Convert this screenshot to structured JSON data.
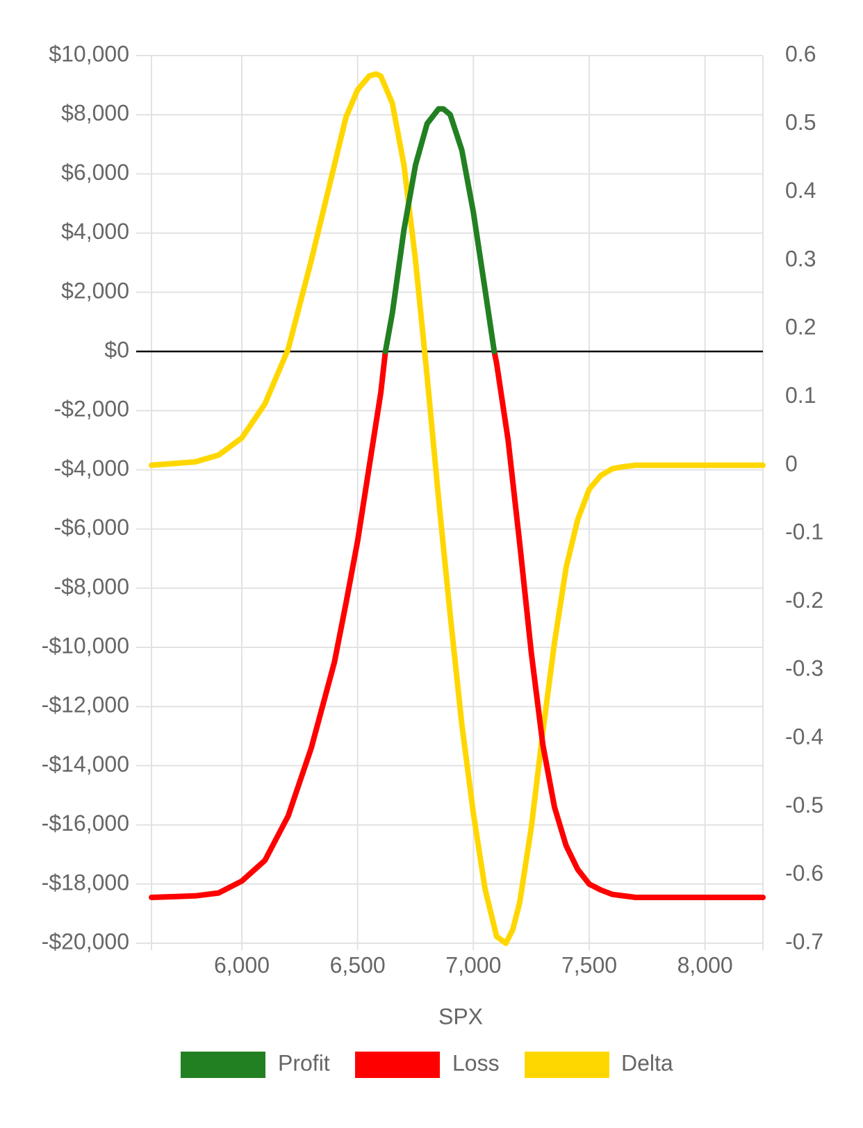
{
  "chart_data": {
    "type": "line",
    "xlabel": "SPX",
    "x_ticks": [
      "6,000",
      "6,500",
      "7,000",
      "7,500",
      "8,000"
    ],
    "x_tick_values": [
      6000,
      6500,
      7000,
      7500,
      8000
    ],
    "xlim": [
      5610,
      8250
    ],
    "y_left": {
      "ylim": [
        -20000,
        10000
      ],
      "ticks": [
        "$10,000",
        "$8,000",
        "$6,000",
        "$4,000",
        "$2,000",
        "$0",
        "-$2,000",
        "-$4,000",
        "-$6,000",
        "-$8,000",
        "-$10,000",
        "-$12,000",
        "-$14,000",
        "-$16,000",
        "-$18,000",
        "-$20,000"
      ],
      "tick_values": [
        10000,
        8000,
        6000,
        4000,
        2000,
        0,
        -2000,
        -4000,
        -6000,
        -8000,
        -10000,
        -12000,
        -14000,
        -16000,
        -18000,
        -20000
      ]
    },
    "y_right": {
      "ylim": [
        -0.7,
        0.6
      ],
      "ticks": [
        "0.6",
        "0.5",
        "0.4",
        "0.3",
        "0.2",
        "0.1",
        "0",
        "-0.1",
        "-0.2",
        "-0.3",
        "-0.4",
        "-0.5",
        "-0.6",
        "-0.7"
      ],
      "tick_values": [
        0.6,
        0.5,
        0.4,
        0.3,
        0.2,
        0.1,
        0,
        -0.1,
        -0.2,
        -0.3,
        -0.4,
        -0.5,
        -0.6,
        -0.7
      ]
    },
    "series": [
      {
        "name": "Profit",
        "color": "#228022",
        "axis": "left",
        "x": [
          6620,
          6650,
          6700,
          6750,
          6800,
          6850,
          6870,
          6900,
          6950,
          7000,
          7050,
          7090
        ],
        "values": [
          0,
          1300,
          4100,
          6300,
          7700,
          8200,
          8200,
          8000,
          6800,
          4700,
          2100,
          0
        ]
      },
      {
        "name": "Loss",
        "color": "#ff0000",
        "axis": "left",
        "x": [
          5610,
          5800,
          5900,
          6000,
          6100,
          6200,
          6300,
          6400,
          6450,
          6500,
          6550,
          6600,
          6620,
          null,
          7090,
          7100,
          7150,
          7200,
          7250,
          7300,
          7350,
          7400,
          7450,
          7500,
          7550,
          7600,
          7700,
          7800,
          8250
        ],
        "values": [
          -18450,
          -18400,
          -18300,
          -17900,
          -17200,
          -15700,
          -13400,
          -10500,
          -8500,
          -6400,
          -3900,
          -1400,
          0,
          null,
          0,
          -400,
          -3000,
          -6500,
          -10200,
          -13300,
          -15400,
          -16700,
          -17500,
          -18000,
          -18200,
          -18350,
          -18450,
          -18450,
          -18450
        ]
      },
      {
        "name": "Delta",
        "color": "#ffd700",
        "axis": "right",
        "x": [
          5610,
          5800,
          5900,
          6000,
          6100,
          6200,
          6300,
          6400,
          6450,
          6500,
          6550,
          6580,
          6600,
          6650,
          6700,
          6750,
          6800,
          6850,
          6900,
          6950,
          7000,
          7050,
          7100,
          7140,
          7170,
          7200,
          7250,
          7300,
          7350,
          7400,
          7450,
          7500,
          7550,
          7600,
          7650,
          7700,
          7800,
          8250
        ],
        "values": [
          0,
          0.005,
          0.015,
          0.04,
          0.09,
          0.17,
          0.3,
          0.44,
          0.51,
          0.55,
          0.57,
          0.573,
          0.57,
          0.53,
          0.44,
          0.3,
          0.13,
          -0.05,
          -0.22,
          -0.38,
          -0.51,
          -0.62,
          -0.69,
          -0.7,
          -0.68,
          -0.64,
          -0.53,
          -0.39,
          -0.26,
          -0.15,
          -0.08,
          -0.035,
          -0.015,
          -0.005,
          -0.002,
          0,
          0,
          0
        ]
      }
    ],
    "legend": {
      "position": "bottom",
      "entries": [
        "Profit",
        "Loss",
        "Delta"
      ]
    },
    "grid": true
  }
}
